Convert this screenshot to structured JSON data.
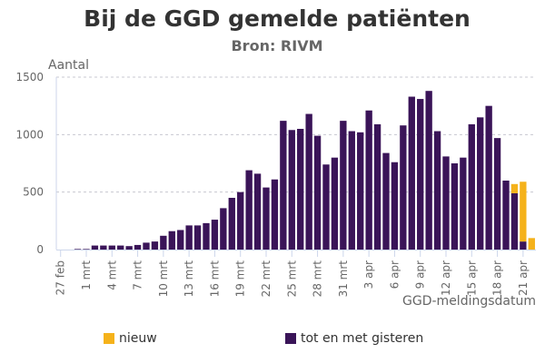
{
  "chart_data": {
    "type": "bar",
    "stacked": true,
    "title": "Bij de GGD gemelde patiënten",
    "subtitle": "Bron: RIVM",
    "ylabel": "Aantal",
    "xlabel": "GGD-meldingsdatum",
    "ylim": [
      0,
      1500
    ],
    "yticks": [
      0,
      500,
      1000,
      1500
    ],
    "grid": true,
    "legend_position": "bottom",
    "categories": [
      "27 feb",
      "28 feb",
      "29 feb",
      "1 mrt",
      "2 mrt",
      "3 mrt",
      "4 mrt",
      "5 mrt",
      "6 mrt",
      "7 mrt",
      "8 mrt",
      "9 mrt",
      "10 mrt",
      "11 mrt",
      "12 mrt",
      "13 mrt",
      "14 mrt",
      "15 mrt",
      "16 mrt",
      "17 mrt",
      "18 mrt",
      "19 mrt",
      "20 mrt",
      "21 mrt",
      "22 mrt",
      "23 mrt",
      "24 mrt",
      "25 mrt",
      "26 mrt",
      "27 mrt",
      "28 mrt",
      "29 mrt",
      "30 mrt",
      "31 mrt",
      "1 apr",
      "2 apr",
      "3 apr",
      "4 apr",
      "5 apr",
      "6 apr",
      "7 apr",
      "8 apr",
      "9 apr",
      "10 apr",
      "11 apr",
      "12 apr",
      "13 apr",
      "14 apr",
      "15 apr",
      "16 apr",
      "17 apr",
      "18 apr",
      "19 apr",
      "20 apr",
      "21 apr",
      "22 apr"
    ],
    "tick_labels": [
      "27 feb",
      "1 mrt",
      "4 mrt",
      "7 mrt",
      "10 mrt",
      "13 mrt",
      "16 mrt",
      "19 mrt",
      "22 mrt",
      "25 mrt",
      "28 mrt",
      "31 mrt",
      "3 apr",
      "6 apr",
      "9 apr",
      "12 apr",
      "15 apr",
      "18 apr",
      "21 apr"
    ],
    "series": [
      {
        "name": "tot en met gisteren",
        "color": "#3a1458",
        "values": [
          0,
          0,
          5,
          5,
          35,
          35,
          35,
          35,
          30,
          40,
          60,
          70,
          120,
          160,
          170,
          210,
          210,
          230,
          260,
          360,
          450,
          500,
          690,
          660,
          540,
          610,
          1120,
          1040,
          1050,
          1180,
          990,
          740,
          800,
          1120,
          1030,
          1020,
          1210,
          1090,
          840,
          760,
          1080,
          1330,
          1310,
          1380,
          1030,
          810,
          750,
          800,
          1090,
          1150,
          1250,
          970,
          600,
          490,
          70,
          0
        ]
      },
      {
        "name": "nieuw",
        "color": "#f5b21b",
        "values": [
          0,
          0,
          0,
          0,
          0,
          0,
          0,
          0,
          0,
          0,
          0,
          0,
          0,
          0,
          0,
          0,
          0,
          0,
          0,
          0,
          0,
          0,
          0,
          0,
          0,
          0,
          0,
          0,
          0,
          0,
          0,
          0,
          0,
          0,
          0,
          0,
          0,
          0,
          0,
          0,
          0,
          0,
          0,
          0,
          0,
          0,
          0,
          0,
          0,
          0,
          0,
          0,
          0,
          80,
          520,
          100
        ]
      }
    ]
  }
}
